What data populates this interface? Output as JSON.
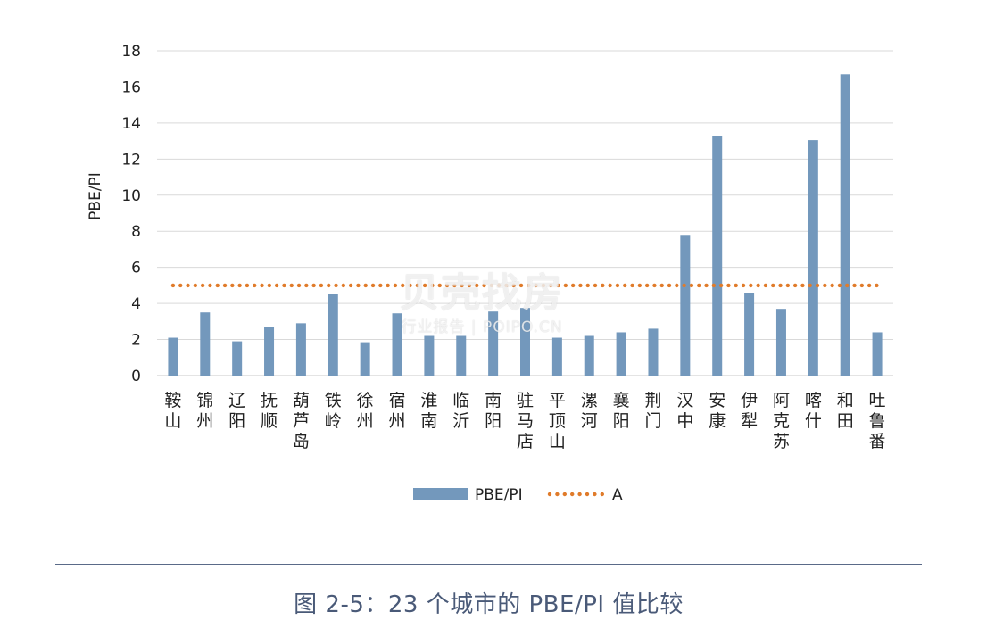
{
  "chart_data": {
    "type": "bar",
    "title": "",
    "xlabel": "",
    "ylabel": "PBE/PI",
    "ylim": [
      0,
      18
    ],
    "yticks": [
      0,
      2,
      4,
      6,
      8,
      10,
      12,
      14,
      16,
      18
    ],
    "grid": true,
    "legend_position": "bottom",
    "categories": [
      "鞍山",
      "锦州",
      "辽阳",
      "抚顺",
      "葫芦岛",
      "铁岭",
      "徐州",
      "宿州",
      "淮南",
      "临沂",
      "南阳",
      "驻马店",
      "平顶山",
      "漯河",
      "襄阳",
      "荆门",
      "汉中",
      "安康",
      "伊犁",
      "阿克苏",
      "喀什",
      "和田",
      "吐鲁番"
    ],
    "series": [
      {
        "name": "PBE/PI",
        "type": "bar",
        "color": "#7398bc",
        "values": [
          2.1,
          3.5,
          1.9,
          2.7,
          2.9,
          4.5,
          1.85,
          3.45,
          2.2,
          2.2,
          3.55,
          3.75,
          2.1,
          2.2,
          2.4,
          2.6,
          7.8,
          13.3,
          4.55,
          3.7,
          13.05,
          16.7,
          2.4
        ]
      },
      {
        "name": "A",
        "type": "dotted-line",
        "color": "#e07b2a",
        "value": 5
      }
    ]
  },
  "caption": "图 2-5：23 个城市的 PBE/PI 值比较",
  "watermark": {
    "main": "贝壳找房",
    "sub": "行业报告 | POIPO.CN"
  }
}
